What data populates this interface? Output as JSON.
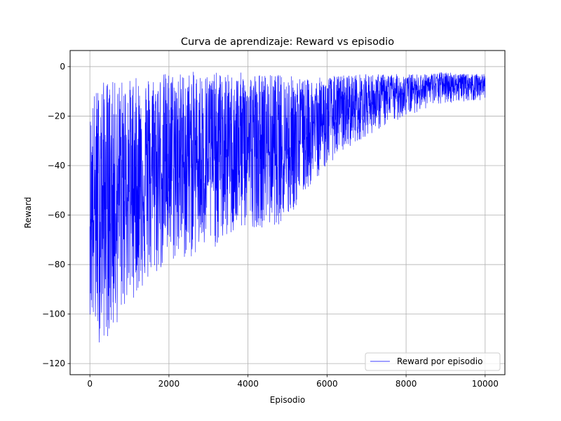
{
  "chart_data": {
    "type": "line",
    "title": "Curva de aprendizaje: Reward vs episodio",
    "xlabel": "Episodio",
    "ylabel": "Reward",
    "xlim": [
      -500,
      10500
    ],
    "ylim": [
      -124.5,
      6.5
    ],
    "xticks": [
      0,
      2000,
      4000,
      6000,
      8000,
      10000
    ],
    "xtick_labels": [
      "0",
      "2000",
      "4000",
      "6000",
      "8000",
      "10000"
    ],
    "yticks": [
      0,
      -20,
      -40,
      -60,
      -80,
      -100,
      -120
    ],
    "ytick_labels": [
      "0",
      "−20",
      "−40",
      "−60",
      "−80",
      "−100",
      "−120"
    ],
    "grid": true,
    "legend_position": "lower-right",
    "series": [
      {
        "name": "Reward por episodio",
        "color": "#0000ff",
        "episodes": 10000,
        "envelope": {
          "x": [
            0,
            100,
            200,
            400,
            600,
            800,
            1000,
            1500,
            2000,
            2500,
            3000,
            3500,
            4000,
            4500,
            5000,
            5500,
            6000,
            6500,
            7000,
            7500,
            8000,
            8500,
            9000,
            9500,
            10000
          ],
          "upper": [
            -20,
            -10,
            -8,
            -5,
            -6,
            -5,
            -5,
            -3,
            -2,
            -2,
            -2,
            -3,
            -2,
            -3,
            -3,
            -5,
            -4,
            -3,
            -3,
            -3,
            -3,
            -3,
            -2,
            -3,
            -3
          ],
          "lower": [
            -100,
            -110,
            -112,
            -110,
            -108,
            -100,
            -95,
            -88,
            -80,
            -78,
            -75,
            -70,
            -65,
            -65,
            -63,
            -50,
            -40,
            -33,
            -28,
            -24,
            -20,
            -17,
            -15,
            -14,
            -14
          ],
          "center": [
            -55,
            -60,
            -60,
            -57,
            -57,
            -52,
            -50,
            -45,
            -40,
            -38,
            -37,
            -36,
            -33,
            -33,
            -32,
            -27,
            -22,
            -18,
            -15,
            -12,
            -10,
            -8,
            -7,
            -7,
            -7
          ]
        }
      }
    ]
  }
}
